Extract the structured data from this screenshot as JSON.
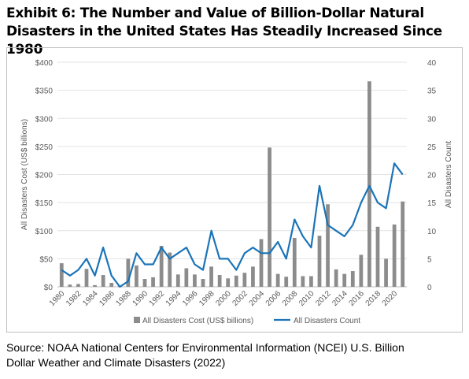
{
  "title_line1": "Exhibit 6: The Number and Value of Billion-Dollar Natural",
  "title_line2": "Disasters in the United States Has Steadily Increased Since 1980",
  "source_line1": "Source: NOAA National Centers for Environmental Information (NCEI) U.S. Billion",
  "source_line2": "Dollar Weather and Climate Disasters (2022)",
  "chart_data": {
    "type": "bar+line",
    "x": [
      1980,
      1981,
      1982,
      1983,
      1984,
      1985,
      1986,
      1987,
      1988,
      1989,
      1990,
      1991,
      1992,
      1993,
      1994,
      1995,
      1996,
      1997,
      1998,
      1999,
      2000,
      2001,
      2002,
      2003,
      2004,
      2005,
      2006,
      2007,
      2008,
      2009,
      2010,
      2011,
      2012,
      2013,
      2014,
      2015,
      2016,
      2017,
      2018,
      2019,
      2020,
      2021
    ],
    "x_tick_labels": [
      "1980",
      "1982",
      "1984",
      "1986",
      "1988",
      "1990",
      "1992",
      "1994",
      "1996",
      "1998",
      "2000",
      "2002",
      "2004",
      "2006",
      "2008",
      "2010",
      "2012",
      "2014",
      "2016",
      "2018",
      "2020"
    ],
    "series": [
      {
        "name": "All Disasters Cost (US$ billions)",
        "type": "bar",
        "axis": "left",
        "color": "#8c8c8c",
        "values": [
          42,
          4,
          5,
          32,
          3,
          21,
          7,
          2,
          50,
          38,
          14,
          17,
          73,
          61,
          22,
          33,
          22,
          14,
          36,
          21,
          15,
          20,
          25,
          36,
          85,
          248,
          23,
          18,
          87,
          19,
          19,
          91,
          147,
          31,
          23,
          28,
          57,
          366,
          107,
          50,
          111,
          152
        ]
      },
      {
        "name": "All Disasters Count",
        "type": "line",
        "axis": "right",
        "color": "#1a74b8",
        "values": [
          3,
          2,
          3,
          5,
          2,
          7,
          2,
          0,
          1,
          6,
          4,
          4,
          7,
          5,
          6,
          7,
          4,
          3,
          10,
          5,
          5,
          3,
          6,
          7,
          6,
          6,
          8,
          5,
          12,
          9,
          7,
          18,
          11,
          10,
          9,
          11,
          15,
          18,
          15,
          14,
          22,
          20
        ]
      }
    ],
    "y_left": {
      "label": "All Disasters Cost (US$ billions)",
      "lim": [
        0,
        400
      ],
      "ticks": [
        "$0",
        "$50",
        "$100",
        "$150",
        "$200",
        "$250",
        "$300",
        "$350",
        "$400"
      ]
    },
    "y_right": {
      "label": "All Disasters Count",
      "lim": [
        0,
        40
      ],
      "ticks": [
        "0",
        "5",
        "10",
        "15",
        "20",
        "25",
        "30",
        "35",
        "40"
      ]
    },
    "grid": "horizontal",
    "legend": "bottom"
  }
}
